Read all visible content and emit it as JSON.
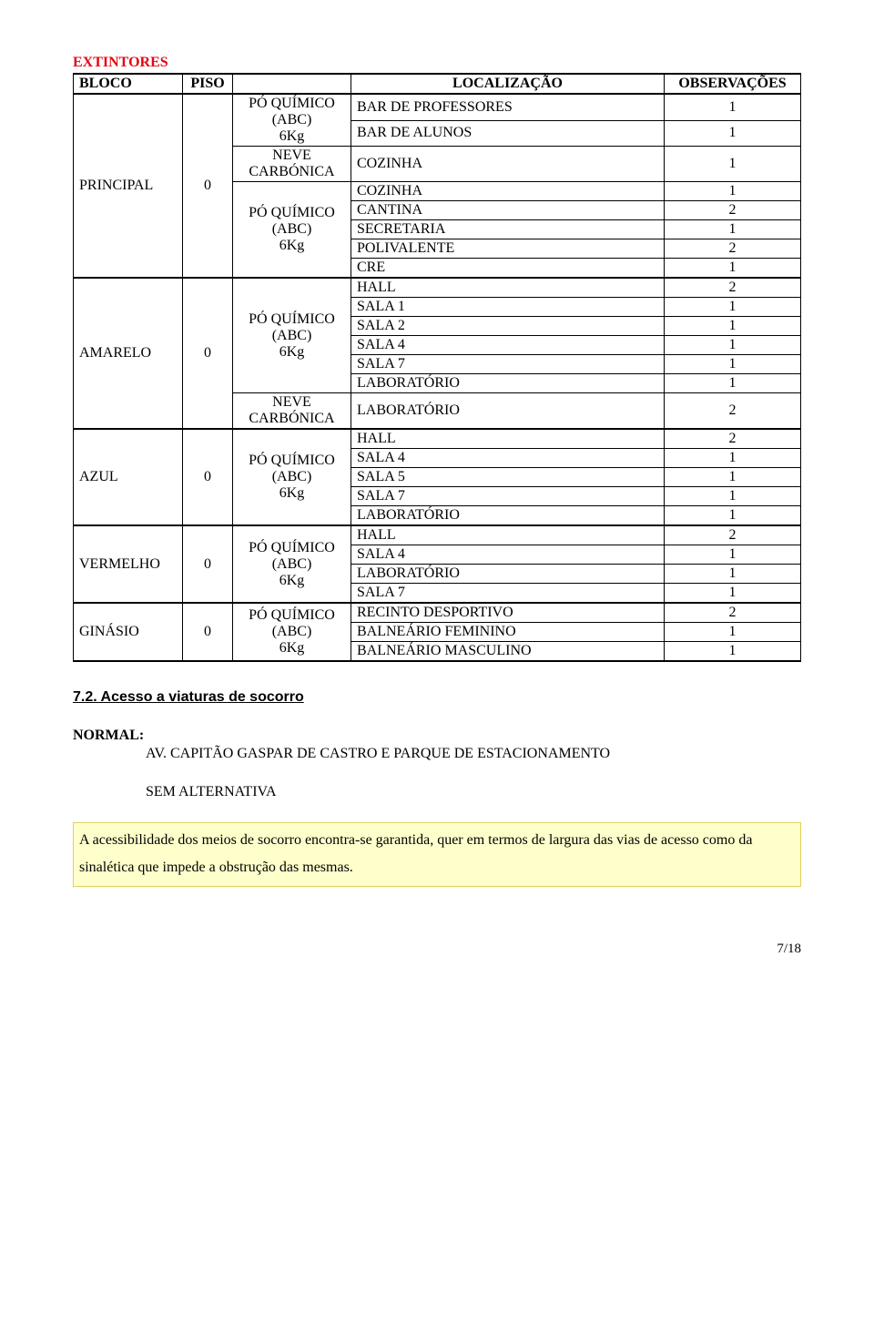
{
  "title": "EXTINTORES",
  "columns": [
    "BLOCO",
    "PISO",
    "",
    "LOCALIZAÇÃO",
    "OBSERVAÇÕES"
  ],
  "blocks": [
    {
      "bloco": "PRINCIPAL",
      "piso": "0",
      "groups": [
        {
          "ext": [
            "PÓ QUÍMICO",
            "(ABC)",
            "6Kg"
          ],
          "rows": [
            {
              "local": "BAR DE PROFESSORES",
              "obs": "1"
            },
            {
              "local": "BAR DE ALUNOS",
              "obs": "1"
            }
          ]
        },
        {
          "ext": [
            "NEVE",
            "CARBÓNICA"
          ],
          "rows": [
            {
              "local": "COZINHA",
              "obs": "1"
            }
          ]
        },
        {
          "ext": [
            "PÓ QUÍMICO",
            "(ABC)",
            "6Kg"
          ],
          "rows": [
            {
              "local": "COZINHA",
              "obs": "1"
            },
            {
              "local": "CANTINA",
              "obs": "2"
            },
            {
              "local": "SECRETARIA",
              "obs": "1"
            },
            {
              "local": "POLIVALENTE",
              "obs": "2"
            },
            {
              "local": "CRE",
              "obs": "1"
            }
          ]
        }
      ]
    },
    {
      "bloco": "AMARELO",
      "piso": "0",
      "groups": [
        {
          "ext": [
            "PÓ QUÍMICO",
            "(ABC)",
            "6Kg"
          ],
          "rows": [
            {
              "local": "HALL",
              "obs": "2"
            },
            {
              "local": "SALA 1",
              "obs": "1"
            },
            {
              "local": "SALA 2",
              "obs": "1"
            },
            {
              "local": "SALA 4",
              "obs": "1"
            },
            {
              "local": "SALA 7",
              "obs": "1"
            },
            {
              "local": "LABORATÓRIO",
              "obs": "1"
            }
          ]
        },
        {
          "ext": [
            "NEVE",
            "CARBÓNICA"
          ],
          "rows": [
            {
              "local": "LABORATÓRIO",
              "obs": "2"
            }
          ]
        }
      ]
    },
    {
      "bloco": "AZUL",
      "piso": "0",
      "groups": [
        {
          "ext": [
            "PÓ QUÍMICO",
            "(ABC)",
            "6Kg"
          ],
          "rows": [
            {
              "local": "HALL",
              "obs": "2"
            },
            {
              "local": "SALA 4",
              "obs": "1"
            },
            {
              "local": "SALA 5",
              "obs": "1"
            },
            {
              "local": "SALA 7",
              "obs": "1"
            },
            {
              "local": "LABORATÓRIO",
              "obs": "1"
            }
          ]
        }
      ]
    },
    {
      "bloco": "VERMELHO",
      "piso": "0",
      "groups": [
        {
          "ext": [
            "PÓ QUÍMICO",
            "(ABC)",
            "6Kg"
          ],
          "rows": [
            {
              "local": "HALL",
              "obs": "2"
            },
            {
              "local": "SALA 4",
              "obs": "1"
            },
            {
              "local": "LABORATÓRIO",
              "obs": "1"
            },
            {
              "local": "SALA 7",
              "obs": "1"
            }
          ]
        }
      ]
    },
    {
      "bloco": "GINÁSIO",
      "piso": "0",
      "groups": [
        {
          "ext": [
            "PÓ QUÍMICO",
            "(ABC)",
            "6Kg"
          ],
          "rows": [
            {
              "local": "RECINTO DESPORTIVO",
              "obs": "2"
            },
            {
              "local": "BALNEÁRIO FEMININO",
              "obs": "1"
            },
            {
              "local": "BALNEÁRIO MASCULINO",
              "obs": "1"
            }
          ]
        }
      ]
    }
  ],
  "section": "7.2. Acesso a viaturas de socorro",
  "normal_label": "NORMAL:",
  "normal_line1": "AV. CAPITÃO GASPAR DE CASTRO E PARQUE DE ESTACIONAMENTO",
  "normal_line2": "SEM ALTERNATIVA",
  "highlight": "A acessibilidade dos meios de socorro encontra-se garantida, quer em termos de largura das vias de acesso como da sinalética que impede a obstrução das mesmas.",
  "page": "7/18"
}
